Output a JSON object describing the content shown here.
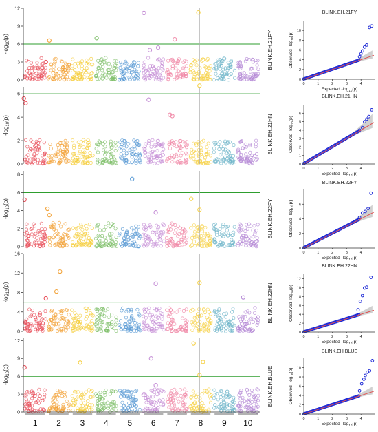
{
  "chart_data": {
    "type": "scatter",
    "figure_kind": "manhattan-and-qq",
    "chromosomes": [
      "1",
      "2",
      "3",
      "4",
      "5",
      "6",
      "7",
      "8",
      "9",
      "10"
    ],
    "chromosome_colors": [
      "#e8505b",
      "#f2a33a",
      "#f5cd3a",
      "#7fbf6a",
      "#5b9bd5",
      "#c58fd6",
      "#f08aa8",
      "#f6d24a",
      "#6fb5c9",
      "#b58ad6"
    ],
    "manhattan": {
      "ylabel": "-log10(p)",
      "threshold_color": "#2e9e2e",
      "vline_chromosome_position": 8.45,
      "panels": [
        {
          "trait": "BLINK.EH.21FY",
          "ylim": [
            0,
            12
          ],
          "yticks": [
            0,
            3,
            6,
            9,
            12
          ],
          "threshold": 6.0,
          "peaks": [
            {
              "chr": 1,
              "pos": 0.95,
              "y": 3.0
            },
            {
              "chr": 2,
              "pos": 0.1,
              "y": 6.6
            },
            {
              "chr": 4,
              "pos": 0.1,
              "y": 7.0
            },
            {
              "chr": 6,
              "pos": 0.1,
              "y": 11.2
            },
            {
              "chr": 6,
              "pos": 0.35,
              "y": 5.0
            },
            {
              "chr": 6,
              "pos": 0.7,
              "y": 5.4
            },
            {
              "chr": 7,
              "pos": 0.4,
              "y": 6.8
            },
            {
              "chr": 8,
              "pos": 0.4,
              "y": 11.3
            },
            {
              "chr": 8,
              "pos": 0.6,
              "y": 3.4
            }
          ]
        },
        {
          "trait": "BLINK.EH.21HN",
          "ylim": [
            0,
            6.6
          ],
          "yticks": [
            0,
            2,
            4,
            6
          ],
          "threshold": 6.0,
          "peaks": [
            {
              "chr": 1,
              "pos": 0.02,
              "y": 5.6
            },
            {
              "chr": 1,
              "pos": 0.1,
              "y": 5.2
            },
            {
              "chr": 6,
              "pos": 0.3,
              "y": 5.5
            },
            {
              "chr": 7,
              "pos": 0.2,
              "y": 4.2
            },
            {
              "chr": 7,
              "pos": 0.3,
              "y": 4.1
            },
            {
              "chr": 8,
              "pos": 0.45,
              "y": 6.7
            }
          ]
        },
        {
          "trait": "BLINK.EH.22FY",
          "ylim": [
            0,
            8.4
          ],
          "yticks": [
            0,
            2,
            4,
            6,
            8
          ],
          "threshold": 6.0,
          "peaks": [
            {
              "chr": 1,
              "pos": 0.05,
              "y": 5.2
            },
            {
              "chr": 2,
              "pos": 0.02,
              "y": 4.2
            },
            {
              "chr": 2,
              "pos": 0.1,
              "y": 3.5
            },
            {
              "chr": 5,
              "pos": 0.6,
              "y": 7.5
            },
            {
              "chr": 6,
              "pos": 0.6,
              "y": 3.8
            },
            {
              "chr": 8,
              "pos": 0.1,
              "y": 5.3
            },
            {
              "chr": 8,
              "pos": 0.45,
              "y": 4.1
            }
          ]
        },
        {
          "trait": "BLINK.EH.22HN",
          "ylim": [
            0,
            16
          ],
          "yticks": [
            0,
            4,
            8,
            12,
            16
          ],
          "threshold": 6.0,
          "peaks": [
            {
              "chr": 1,
              "pos": 0.95,
              "y": 6.8
            },
            {
              "chr": 2,
              "pos": 0.4,
              "y": 8.2
            },
            {
              "chr": 2,
              "pos": 0.55,
              "y": 12.3
            },
            {
              "chr": 6,
              "pos": 0.6,
              "y": 9.8
            },
            {
              "chr": 8,
              "pos": 0.45,
              "y": 10.0
            },
            {
              "chr": 10,
              "pos": 0.3,
              "y": 7.0
            }
          ]
        },
        {
          "trait": "BLINK.EH.BLUE",
          "ylim": [
            0,
            12.5
          ],
          "yticks": [
            0,
            3,
            6,
            9,
            12
          ],
          "threshold": 6.0,
          "peaks": [
            {
              "chr": 1,
              "pos": 0.05,
              "y": 7.5
            },
            {
              "chr": 3,
              "pos": 0.4,
              "y": 8.3
            },
            {
              "chr": 6,
              "pos": 0.4,
              "y": 9.0
            },
            {
              "chr": 6,
              "pos": 0.6,
              "y": 4.5
            },
            {
              "chr": 8,
              "pos": 0.2,
              "y": 11.5
            },
            {
              "chr": 8,
              "pos": 0.45,
              "y": 6.2
            },
            {
              "chr": 8,
              "pos": 0.6,
              "y": 8.4
            }
          ]
        }
      ]
    },
    "qq": {
      "xlabel": "Expected -log10(p)",
      "ylabel": "Observed -log10(p)",
      "xlim": [
        0,
        5
      ],
      "xticks": [
        0,
        1,
        2,
        3,
        4
      ],
      "point_color": "#1f2bd6",
      "line_color": "#e05050",
      "band_color": "#aaaaaa",
      "panels": [
        {
          "title": "BLINK.EH.21FY",
          "side_label": "BLINK.EH.21FY",
          "ylim": [
            0,
            12
          ],
          "yticks": [
            0,
            2,
            4,
            6,
            8,
            10
          ],
          "tail_points": [
            [
              3.9,
              4.6
            ],
            [
              4.0,
              5.2
            ],
            [
              4.1,
              5.8
            ],
            [
              4.25,
              6.6
            ],
            [
              4.4,
              7.0
            ],
            [
              4.6,
              10.6
            ],
            [
              4.75,
              10.9
            ]
          ]
        },
        {
          "title": "BLINK.EH.21HN",
          "side_label": "BLINK.EH.21HN",
          "ylim": [
            0,
            7
          ],
          "yticks": [
            0,
            1,
            2,
            3,
            4,
            5,
            6
          ],
          "tail_points": [
            [
              3.9,
              4.0
            ],
            [
              4.1,
              4.3
            ],
            [
              4.25,
              5.0
            ],
            [
              4.4,
              5.3
            ],
            [
              4.55,
              5.6
            ],
            [
              4.75,
              6.4
            ]
          ]
        },
        {
          "title": "BLINK.EH.22FY",
          "side_label": "BLINK.EH.22FY",
          "ylim": [
            0,
            8
          ],
          "yticks": [
            0,
            2,
            4,
            6
          ],
          "tail_points": [
            [
              3.9,
              4.2
            ],
            [
              4.1,
              4.8
            ],
            [
              4.3,
              5.0
            ],
            [
              4.5,
              5.4
            ],
            [
              4.7,
              7.5
            ]
          ]
        },
        {
          "title": "BLINK.EH.22HN",
          "side_label": "BLINK.EH.22HN",
          "ylim": [
            0,
            13
          ],
          "yticks": [
            0,
            2,
            4,
            6,
            8,
            10,
            12
          ],
          "tail_points": [
            [
              3.8,
              5.0
            ],
            [
              3.95,
              6.9
            ],
            [
              4.1,
              8.2
            ],
            [
              4.25,
              9.9
            ],
            [
              4.4,
              10.1
            ],
            [
              4.7,
              12.3
            ]
          ]
        },
        {
          "title": "BLINK.EH BLUE",
          "side_label": "BLINK.EH.BLUE",
          "ylim": [
            0,
            12
          ],
          "yticks": [
            0,
            2,
            4,
            6,
            8,
            10
          ],
          "tail_points": [
            [
              3.9,
              5.0
            ],
            [
              4.05,
              6.5
            ],
            [
              4.2,
              7.5
            ],
            [
              4.3,
              8.3
            ],
            [
              4.45,
              9.0
            ],
            [
              4.6,
              9.3
            ],
            [
              4.8,
              11.5
            ]
          ]
        }
      ]
    }
  }
}
